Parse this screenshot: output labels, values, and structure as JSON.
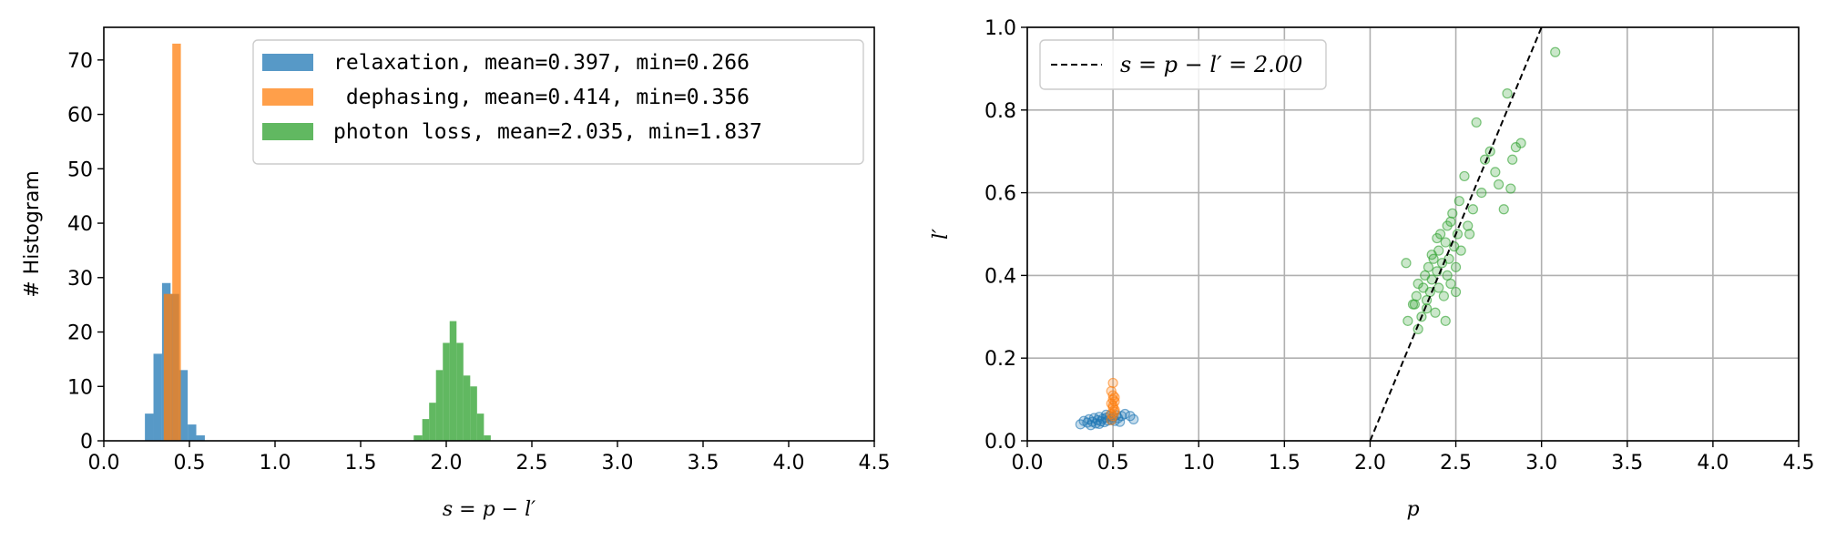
{
  "chart_data": [
    {
      "type": "histogram",
      "xlabel": "s = p − l′",
      "ylabel": "# Histogram",
      "xlim": [
        0.0,
        4.5
      ],
      "ylim": [
        0,
        76
      ],
      "xticks": [
        "0.0",
        "0.5",
        "1.0",
        "1.5",
        "2.0",
        "2.5",
        "3.0",
        "3.5",
        "4.0",
        "4.5"
      ],
      "yticks": [
        "0",
        "10",
        "20",
        "30",
        "40",
        "50",
        "60",
        "70"
      ],
      "legend_position": "top-right",
      "grid": false,
      "series": [
        {
          "name": "relaxation, mean=0.397, min=0.266",
          "color": "#1f77b4",
          "bins": [
            {
              "x0": 0.24,
              "x1": 0.29,
              "count": 5
            },
            {
              "x0": 0.29,
              "x1": 0.34,
              "count": 16
            },
            {
              "x0": 0.34,
              "x1": 0.39,
              "count": 29
            },
            {
              "x0": 0.39,
              "x1": 0.44,
              "count": 27
            },
            {
              "x0": 0.44,
              "x1": 0.49,
              "count": 13
            },
            {
              "x0": 0.49,
              "x1": 0.54,
              "count": 3
            },
            {
              "x0": 0.54,
              "x1": 0.59,
              "count": 1
            }
          ]
        },
        {
          "name": " dephasing, mean=0.414, min=0.356",
          "color": "#ff7f0e",
          "bins": [
            {
              "x0": 0.35,
              "x1": 0.4,
              "count": 27
            },
            {
              "x0": 0.4,
              "x1": 0.45,
              "count": 73
            },
            {
              "x0": 0.45,
              "x1": 0.47,
              "count": 0
            }
          ]
        },
        {
          "name": "photon loss, mean=2.035, min=1.837",
          "color": "#2ca02c",
          "bins": [
            {
              "x0": 1.81,
              "x1": 1.86,
              "count": 1
            },
            {
              "x0": 1.86,
              "x1": 1.9,
              "count": 4
            },
            {
              "x0": 1.9,
              "x1": 1.94,
              "count": 7
            },
            {
              "x0": 1.94,
              "x1": 1.98,
              "count": 13
            },
            {
              "x0": 1.98,
              "x1": 2.02,
              "count": 18
            },
            {
              "x0": 2.02,
              "x1": 2.06,
              "count": 22
            },
            {
              "x0": 2.06,
              "x1": 2.1,
              "count": 18
            },
            {
              "x0": 2.1,
              "x1": 2.14,
              "count": 12
            },
            {
              "x0": 2.14,
              "x1": 2.18,
              "count": 10
            },
            {
              "x0": 2.18,
              "x1": 2.22,
              "count": 5
            },
            {
              "x0": 2.22,
              "x1": 2.26,
              "count": 1
            }
          ]
        }
      ]
    },
    {
      "type": "scatter",
      "xlabel": "p",
      "ylabel": "l′",
      "xlim": [
        0.0,
        4.5
      ],
      "ylim": [
        0.0,
        1.0
      ],
      "xticks": [
        "0.0",
        "0.5",
        "1.0",
        "1.5",
        "2.0",
        "2.5",
        "3.0",
        "3.5",
        "4.0",
        "4.5"
      ],
      "yticks": [
        "0.0",
        "0.2",
        "0.4",
        "0.6",
        "0.8",
        "1.0"
      ],
      "grid": true,
      "legend_position": "top-left",
      "line": {
        "name": "s = p − l′ = 2.00",
        "style": "dashed",
        "color": "#000000",
        "points": [
          [
            2.0,
            0.0
          ],
          [
            3.0,
            1.0
          ]
        ]
      },
      "series": [
        {
          "name": "relaxation",
          "color": "#1f77b4",
          "points": [
            [
              0.31,
              0.04
            ],
            [
              0.33,
              0.048
            ],
            [
              0.35,
              0.044
            ],
            [
              0.36,
              0.052
            ],
            [
              0.38,
              0.046
            ],
            [
              0.39,
              0.055
            ],
            [
              0.4,
              0.042
            ],
            [
              0.41,
              0.05
            ],
            [
              0.42,
              0.058
            ],
            [
              0.43,
              0.047
            ],
            [
              0.44,
              0.053
            ],
            [
              0.45,
              0.045
            ],
            [
              0.46,
              0.056
            ],
            [
              0.47,
              0.049
            ],
            [
              0.48,
              0.06
            ],
            [
              0.49,
              0.051
            ],
            [
              0.5,
              0.057
            ],
            [
              0.51,
              0.048
            ],
            [
              0.52,
              0.062
            ],
            [
              0.53,
              0.055
            ],
            [
              0.55,
              0.06
            ],
            [
              0.57,
              0.065
            ],
            [
              0.6,
              0.06
            ],
            [
              0.62,
              0.052
            ],
            [
              0.37,
              0.038
            ],
            [
              0.42,
              0.041
            ],
            [
              0.46,
              0.063
            ],
            [
              0.54,
              0.046
            ]
          ]
        },
        {
          "name": "dephasing",
          "color": "#ff7f0e",
          "points": [
            [
              0.49,
              0.05
            ],
            [
              0.5,
              0.06
            ],
            [
              0.51,
              0.07
            ],
            [
              0.5,
              0.08
            ],
            [
              0.49,
              0.09
            ],
            [
              0.51,
              0.095
            ],
            [
              0.5,
              0.1
            ],
            [
              0.5,
              0.11
            ],
            [
              0.49,
              0.12
            ],
            [
              0.51,
              0.105
            ],
            [
              0.5,
              0.14
            ],
            [
              0.5,
              0.085
            ],
            [
              0.49,
              0.065
            ],
            [
              0.51,
              0.075
            ]
          ]
        },
        {
          "name": "photon loss",
          "color": "#2ca02c",
          "points": [
            [
              2.22,
              0.29
            ],
            [
              2.25,
              0.33
            ],
            [
              2.27,
              0.35
            ],
            [
              2.28,
              0.38
            ],
            [
              2.3,
              0.3
            ],
            [
              2.31,
              0.37
            ],
            [
              2.32,
              0.4
            ],
            [
              2.33,
              0.34
            ],
            [
              2.34,
              0.42
            ],
            [
              2.35,
              0.36
            ],
            [
              2.36,
              0.39
            ],
            [
              2.37,
              0.44
            ],
            [
              2.38,
              0.31
            ],
            [
              2.39,
              0.41
            ],
            [
              2.4,
              0.46
            ],
            [
              2.4,
              0.37
            ],
            [
              2.41,
              0.5
            ],
            [
              2.42,
              0.43
            ],
            [
              2.43,
              0.35
            ],
            [
              2.44,
              0.48
            ],
            [
              2.45,
              0.4
            ],
            [
              2.45,
              0.52
            ],
            [
              2.46,
              0.44
            ],
            [
              2.47,
              0.38
            ],
            [
              2.48,
              0.55
            ],
            [
              2.49,
              0.47
            ],
            [
              2.5,
              0.42
            ],
            [
              2.51,
              0.5
            ],
            [
              2.52,
              0.58
            ],
            [
              2.53,
              0.46
            ],
            [
              2.55,
              0.64
            ],
            [
              2.57,
              0.52
            ],
            [
              2.6,
              0.56
            ],
            [
              2.62,
              0.77
            ],
            [
              2.65,
              0.6
            ],
            [
              2.67,
              0.68
            ],
            [
              2.7,
              0.7
            ],
            [
              2.73,
              0.65
            ],
            [
              2.75,
              0.62
            ],
            [
              2.78,
              0.56
            ],
            [
              2.8,
              0.84
            ],
            [
              2.82,
              0.61
            ],
            [
              2.85,
              0.71
            ],
            [
              2.88,
              0.72
            ],
            [
              2.28,
              0.27
            ],
            [
              2.26,
              0.33
            ],
            [
              2.36,
              0.45
            ],
            [
              2.44,
              0.29
            ],
            [
              2.5,
              0.36
            ],
            [
              2.33,
              0.32
            ],
            [
              2.58,
              0.5
            ],
            [
              3.08,
              0.94
            ],
            [
              2.83,
              0.68
            ],
            [
              2.39,
              0.49
            ],
            [
              2.47,
              0.53
            ],
            [
              2.21,
              0.43
            ]
          ]
        }
      ]
    }
  ]
}
